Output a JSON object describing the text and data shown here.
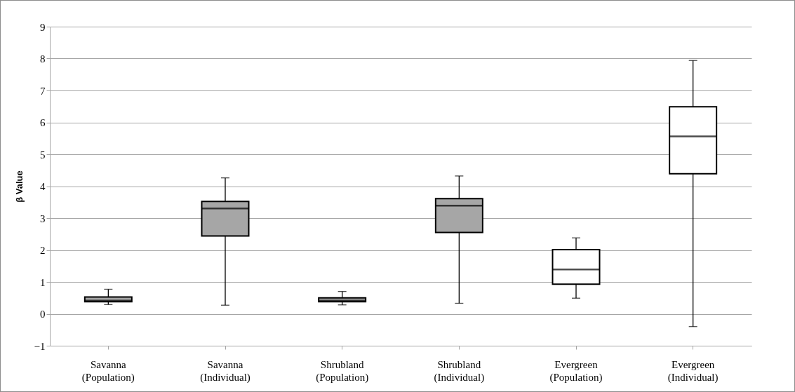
{
  "chart_data": {
    "type": "box",
    "ylabel": "β Value",
    "categories": [
      "Savanna (Population)",
      "Savanna (Individual)",
      "Shrubland (Population)",
      "Shrubland (Individual)",
      "Evergreen (Population)",
      "Evergreen (Individual)"
    ],
    "boxes": [
      {
        "low": 0.29,
        "q1": 0.38,
        "median": 0.41,
        "q3": 0.53,
        "high": 0.77
      },
      {
        "low": 0.27,
        "q1": 2.44,
        "median": 3.3,
        "q3": 3.52,
        "high": 4.26
      },
      {
        "low": 0.28,
        "q1": 0.38,
        "median": 0.41,
        "q3": 0.5,
        "high": 0.7
      },
      {
        "low": 0.33,
        "q1": 2.55,
        "median": 3.39,
        "q3": 3.61,
        "high": 4.32
      },
      {
        "low": 0.49,
        "q1": 0.93,
        "median": 1.39,
        "q3": 2.01,
        "high": 2.38
      },
      {
        "low": -0.4,
        "q1": 4.39,
        "median": 5.56,
        "q3": 6.49,
        "high": 7.94
      }
    ],
    "colors": [
      "#a6a6a6",
      "#a6a6a6",
      "#a6a6a6",
      "#a6a6a6",
      "#ffffff",
      "#ffffff"
    ],
    "ylim": [
      -1,
      9
    ],
    "yticks": [
      -1,
      0,
      1,
      2,
      3,
      4,
      5,
      6,
      7,
      8,
      9
    ],
    "grid": "y",
    "legend": false
  }
}
